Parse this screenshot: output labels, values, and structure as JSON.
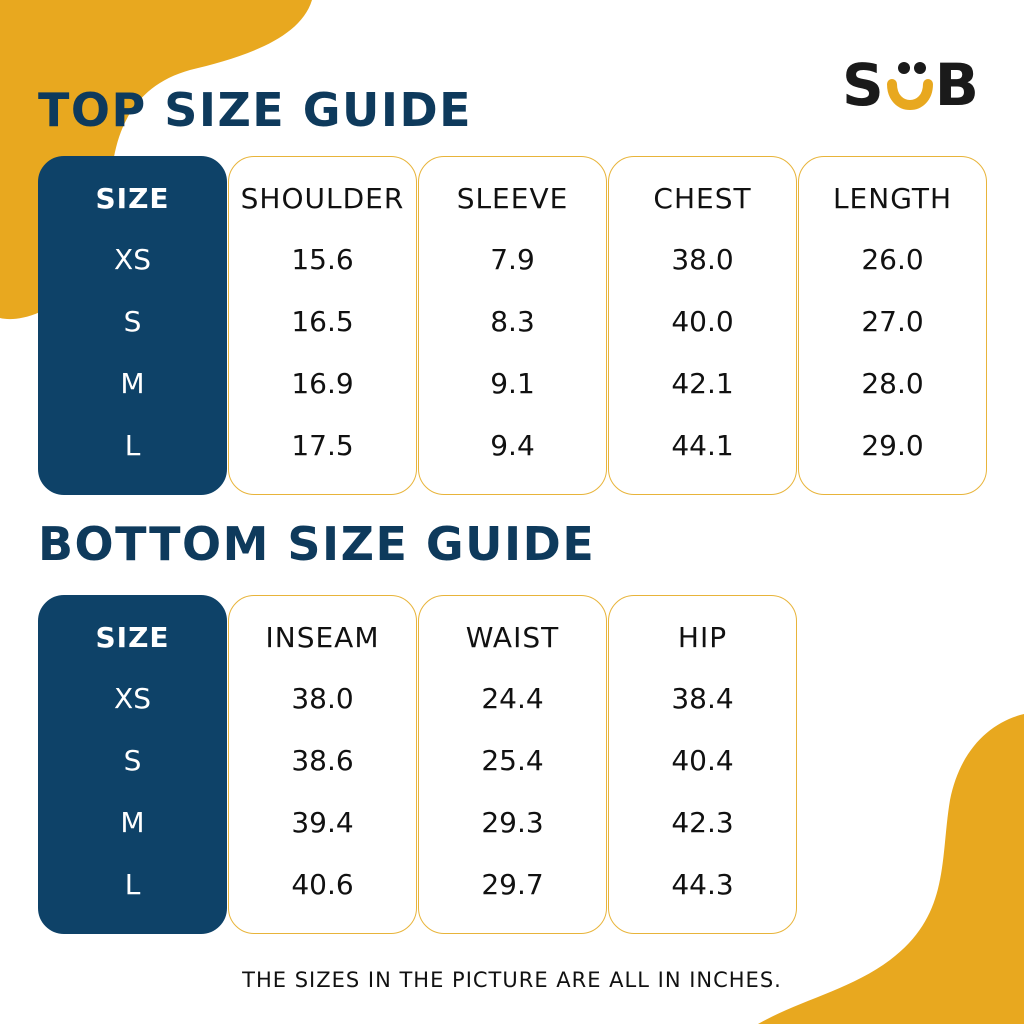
{
  "brand": {
    "logo_left": "S",
    "logo_right": "B",
    "colors": {
      "navy": "#0e4268",
      "accent": "#e8a81f",
      "text": "#111111"
    }
  },
  "top": {
    "title": "TOP SIZE GUIDE",
    "columns": [
      {
        "header": "SIZE",
        "values": [
          "XS",
          "S",
          "M",
          "L"
        ]
      },
      {
        "header": "SHOULDER",
        "values": [
          "15.6",
          "16.5",
          "16.9",
          "17.5"
        ]
      },
      {
        "header": "SLEEVE",
        "values": [
          "7.9",
          "8.3",
          "9.1",
          "9.4"
        ]
      },
      {
        "header": "CHEST",
        "values": [
          "38.0",
          "40.0",
          "42.1",
          "44.1"
        ]
      },
      {
        "header": "LENGTH",
        "values": [
          "26.0",
          "27.0",
          "28.0",
          "29.0"
        ]
      }
    ]
  },
  "bottom": {
    "title": "BOTTOM SIZE GUIDE",
    "columns": [
      {
        "header": "SIZE",
        "values": [
          "XS",
          "S",
          "M",
          "L"
        ]
      },
      {
        "header": "INSEAM",
        "values": [
          "38.0",
          "38.6",
          "39.4",
          "40.6"
        ]
      },
      {
        "header": "WAIST",
        "values": [
          "24.4",
          "25.4",
          "29.3",
          "29.7"
        ]
      },
      {
        "header": "HIP",
        "values": [
          "38.4",
          "40.4",
          "42.3",
          "44.3"
        ]
      }
    ]
  },
  "footnote": "THE SIZES IN THE PICTURE ARE ALL IN INCHES."
}
